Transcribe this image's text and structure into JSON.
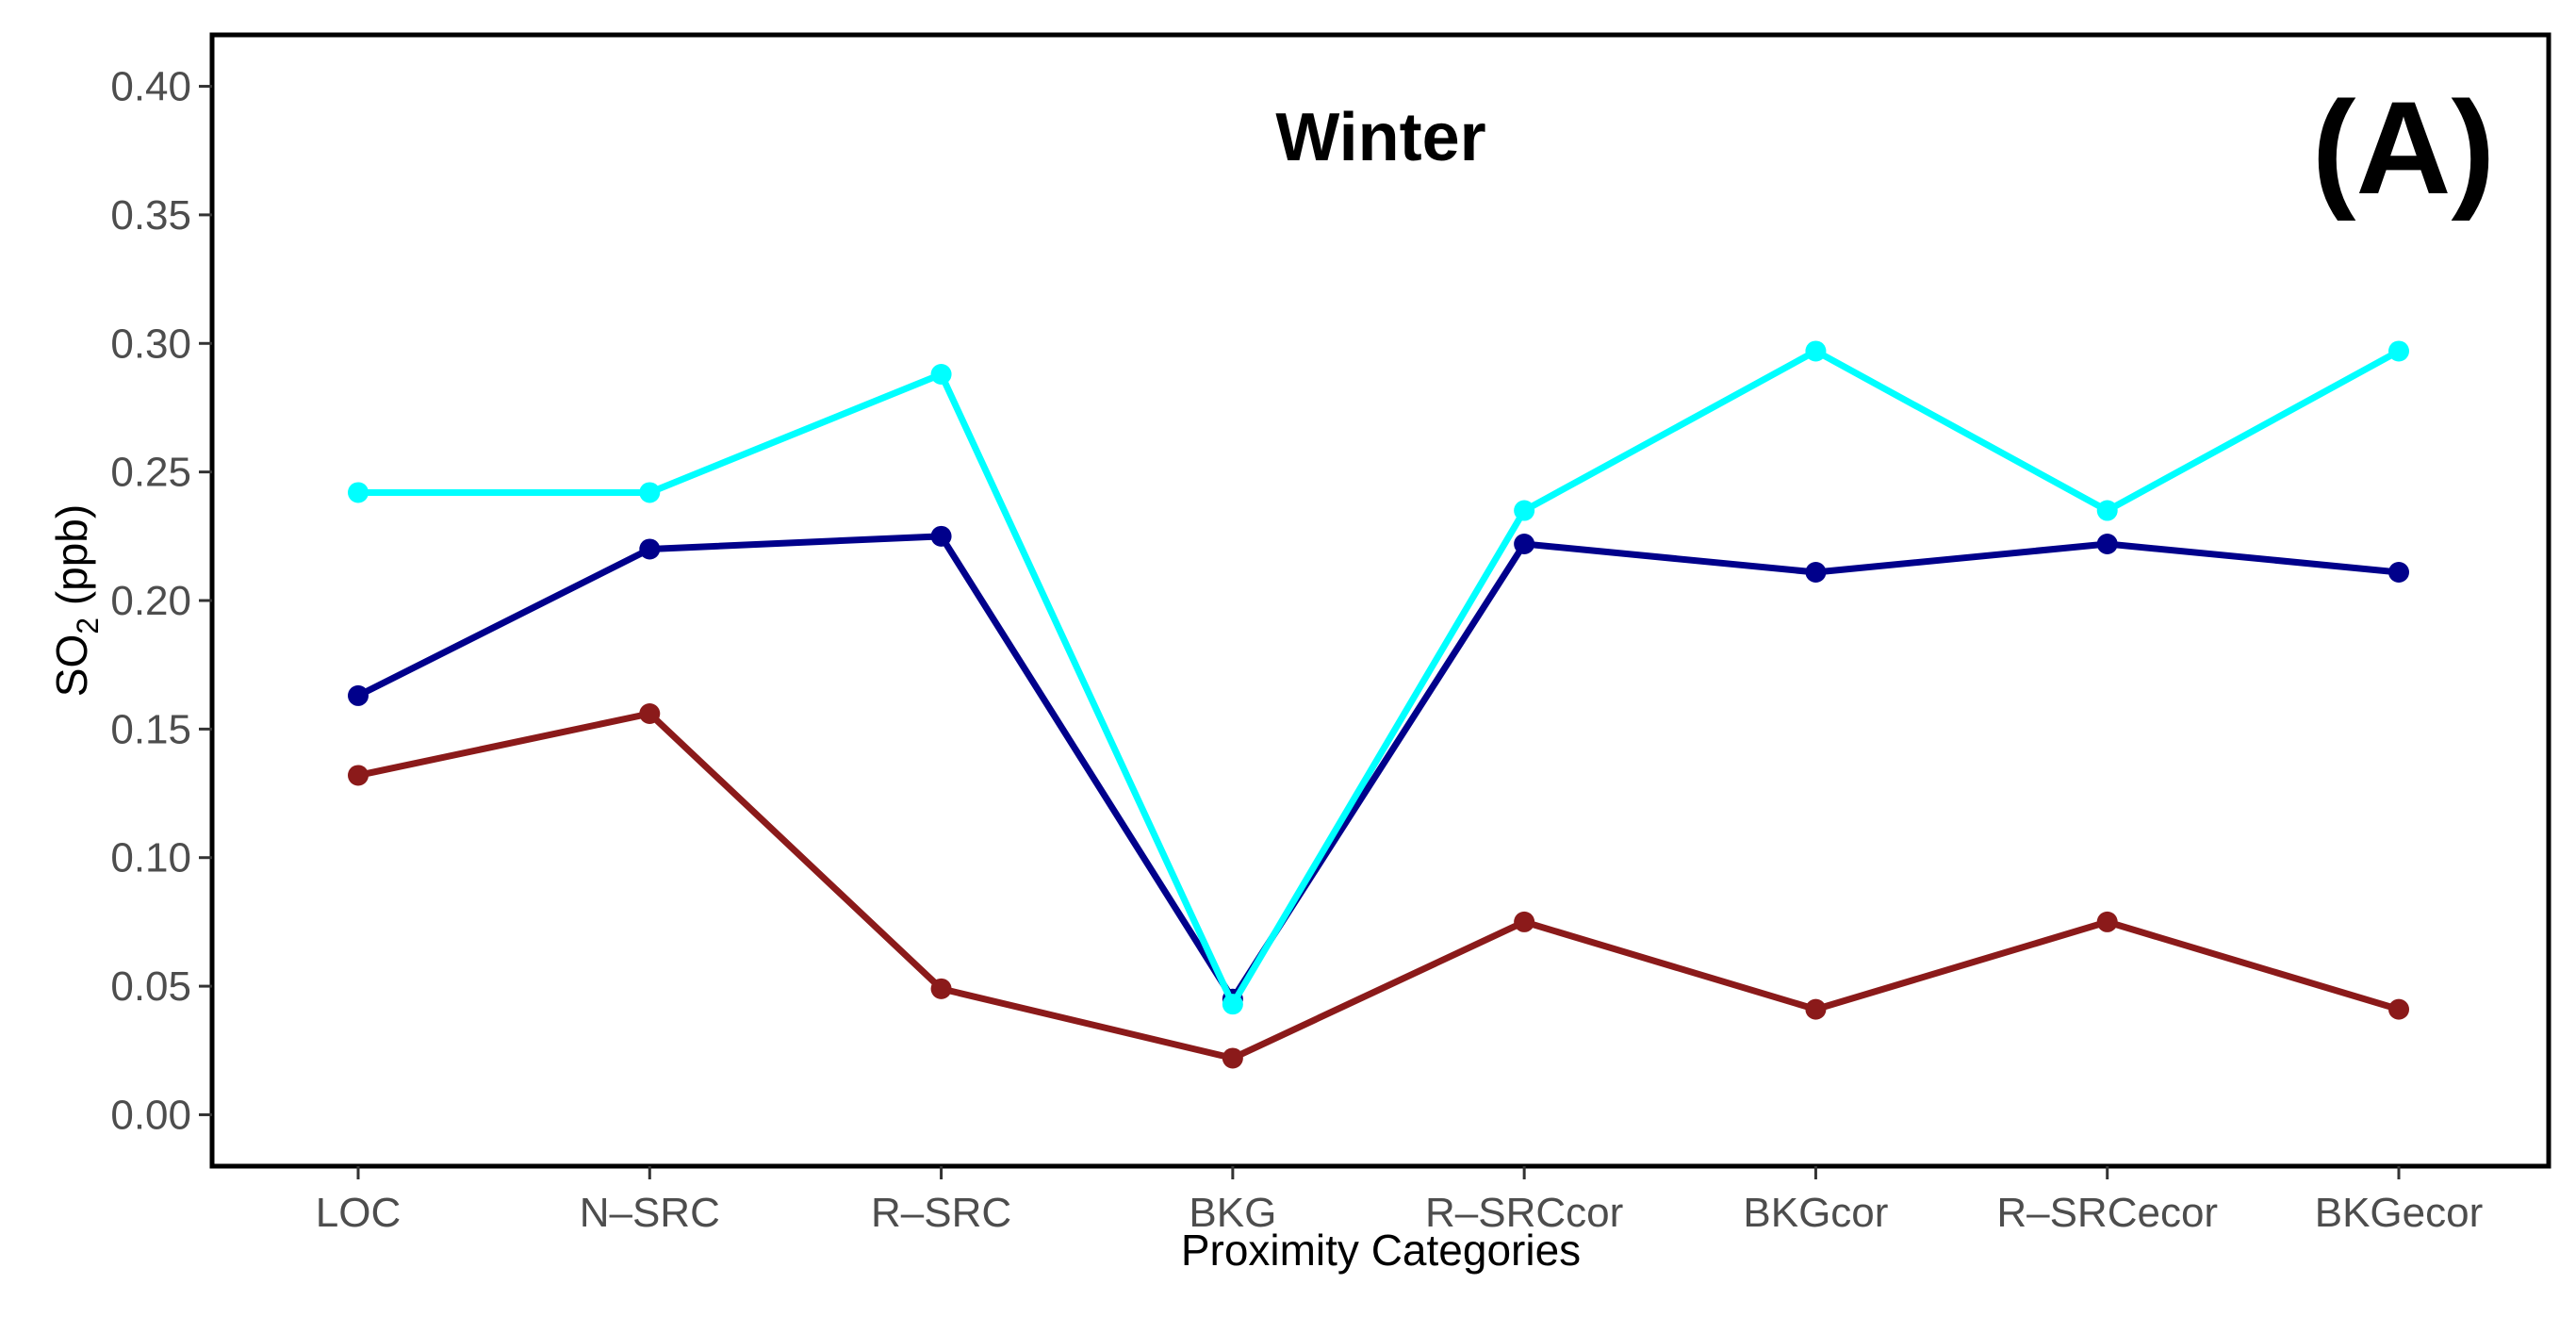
{
  "chart_data": {
    "type": "line",
    "title": "Winter",
    "panel_label": "(A)",
    "xlabel": "Proximity Categories",
    "ylabel": "SO",
    "ylabel_subscript": "2",
    "ylabel_unit": " (ppb)",
    "categories": [
      "LOC",
      "N–SRC",
      "R–SRC",
      "BKG",
      "R–SRCcor",
      "BKGcor",
      "R–SRCecor",
      "BKGecor"
    ],
    "y_ticks": [
      "0.00",
      "0.05",
      "0.10",
      "0.15",
      "0.20",
      "0.25",
      "0.30",
      "0.35",
      "0.40"
    ],
    "ylim": [
      -0.02,
      0.42
    ],
    "grid": false,
    "legend": "none",
    "series": [
      {
        "name": "cyan series",
        "color": "#00ffff",
        "values": [
          0.242,
          0.242,
          0.288,
          0.043,
          0.235,
          0.297,
          0.235,
          0.297
        ]
      },
      {
        "name": "navy series",
        "color": "#00008b",
        "values": [
          0.163,
          0.22,
          0.225,
          0.045,
          0.222,
          0.211,
          0.222,
          0.211
        ]
      },
      {
        "name": "maroon series",
        "color": "#8b1a1a",
        "values": [
          0.132,
          0.156,
          0.049,
          0.022,
          0.075,
          0.041,
          0.075,
          0.041
        ]
      }
    ]
  }
}
